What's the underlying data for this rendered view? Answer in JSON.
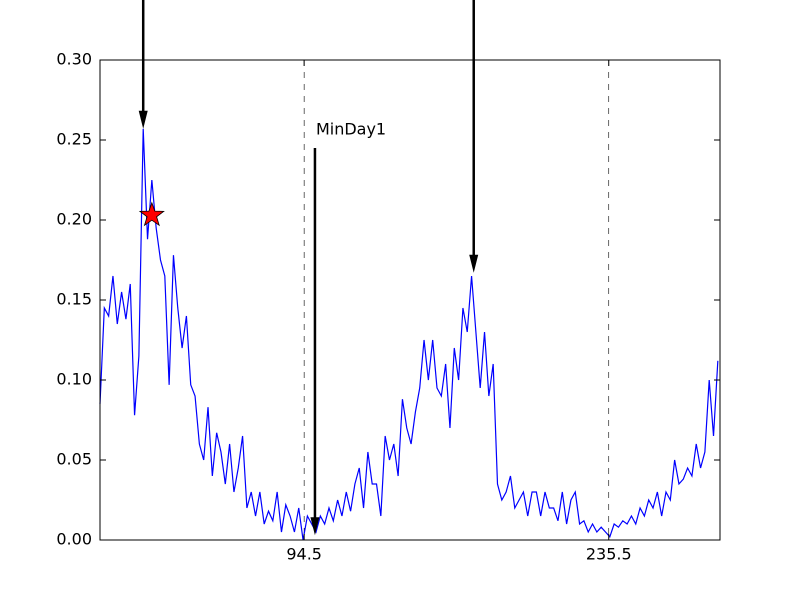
{
  "chart_data": {
    "type": "line",
    "x": [
      0,
      2,
      4,
      6,
      8,
      10,
      12,
      14,
      16,
      18,
      20,
      22,
      24,
      26,
      28,
      30,
      32,
      34,
      36,
      38,
      40,
      42,
      44,
      46,
      48,
      50,
      52,
      54,
      56,
      58,
      60,
      62,
      64,
      66,
      68,
      70,
      72,
      74,
      76,
      78,
      80,
      82,
      84,
      86,
      88,
      90,
      92,
      94,
      96,
      98,
      100,
      102,
      104,
      106,
      108,
      110,
      112,
      114,
      116,
      118,
      120,
      122,
      124,
      126,
      128,
      130,
      132,
      134,
      136,
      138,
      140,
      142,
      144,
      146,
      148,
      150,
      152,
      154,
      156,
      158,
      160,
      162,
      164,
      166,
      168,
      170,
      172,
      174,
      176,
      178,
      180,
      182,
      184,
      186,
      188,
      190,
      192,
      194,
      196,
      198,
      200,
      202,
      204,
      206,
      208,
      210,
      212,
      214,
      216,
      218,
      220,
      222,
      224,
      226,
      228,
      230,
      232,
      234,
      236,
      238,
      240,
      242,
      244,
      246,
      248,
      250,
      252,
      254,
      256,
      258,
      260,
      262,
      264,
      266,
      268,
      270,
      272,
      274,
      276,
      278,
      280,
      282,
      284,
      286
    ],
    "series": [
      {
        "color": "#0000ff",
        "values": [
          0.085,
          0.145,
          0.14,
          0.165,
          0.135,
          0.155,
          0.138,
          0.16,
          0.078,
          0.115,
          0.257,
          0.188,
          0.225,
          0.195,
          0.175,
          0.165,
          0.097,
          0.178,
          0.145,
          0.12,
          0.14,
          0.097,
          0.09,
          0.06,
          0.05,
          0.083,
          0.04,
          0.067,
          0.055,
          0.035,
          0.06,
          0.03,
          0.045,
          0.065,
          0.02,
          0.03,
          0.015,
          0.03,
          0.01,
          0.018,
          0.012,
          0.03,
          0.005,
          0.022,
          0.015,
          0.005,
          0.02,
          0.0,
          0.015,
          0.01,
          0.005,
          0.015,
          0.01,
          0.02,
          0.012,
          0.025,
          0.015,
          0.03,
          0.018,
          0.035,
          0.045,
          0.02,
          0.055,
          0.035,
          0.035,
          0.015,
          0.065,
          0.05,
          0.06,
          0.04,
          0.088,
          0.07,
          0.06,
          0.08,
          0.095,
          0.125,
          0.1,
          0.125,
          0.095,
          0.09,
          0.11,
          0.07,
          0.12,
          0.1,
          0.145,
          0.13,
          0.165,
          0.13,
          0.095,
          0.13,
          0.09,
          0.11,
          0.035,
          0.025,
          0.03,
          0.04,
          0.02,
          0.025,
          0.03,
          0.015,
          0.03,
          0.03,
          0.015,
          0.03,
          0.02,
          0.02,
          0.012,
          0.03,
          0.01,
          0.025,
          0.03,
          0.01,
          0.012,
          0.005,
          0.01,
          0.005,
          0.008,
          0.005,
          0.002,
          0.01,
          0.008,
          0.012,
          0.01,
          0.015,
          0.01,
          0.02,
          0.015,
          0.025,
          0.02,
          0.03,
          0.015,
          0.03,
          0.025,
          0.05,
          0.035,
          0.038,
          0.045,
          0.04,
          0.06,
          0.045,
          0.055,
          0.1,
          0.065,
          0.112
        ]
      }
    ],
    "xlim": [
      0,
      287
    ],
    "ylim": [
      0,
      0.3
    ],
    "xticks": [
      94.5,
      235.5
    ],
    "yticks": [
      {
        "value": 0,
        "label": "0.00"
      },
      {
        "value": 0.05,
        "label": "0.05"
      },
      {
        "value": 0.1,
        "label": "0.10"
      },
      {
        "value": 0.15,
        "label": "0.15"
      },
      {
        "value": 0.2,
        "label": "0.20"
      },
      {
        "value": 0.25,
        "label": "0.25"
      },
      {
        "value": 0.3,
        "label": "0.30"
      }
    ],
    "vlines": [
      94.5,
      235.5
    ],
    "annotations": [
      {
        "xy": [
          20,
          0.257
        ],
        "xytext": [
          20,
          0.35
        ]
      },
      {
        "xy": [
          173,
          0.167
        ],
        "xytext": [
          173,
          0.35
        ]
      },
      {
        "text": "MinDay1",
        "xy": [
          99.5,
          0.003
        ],
        "xytext": [
          99.5,
          0.245
        ]
      }
    ],
    "marker": {
      "x": 24,
      "y": 0.203,
      "color": "#ff0000"
    }
  }
}
